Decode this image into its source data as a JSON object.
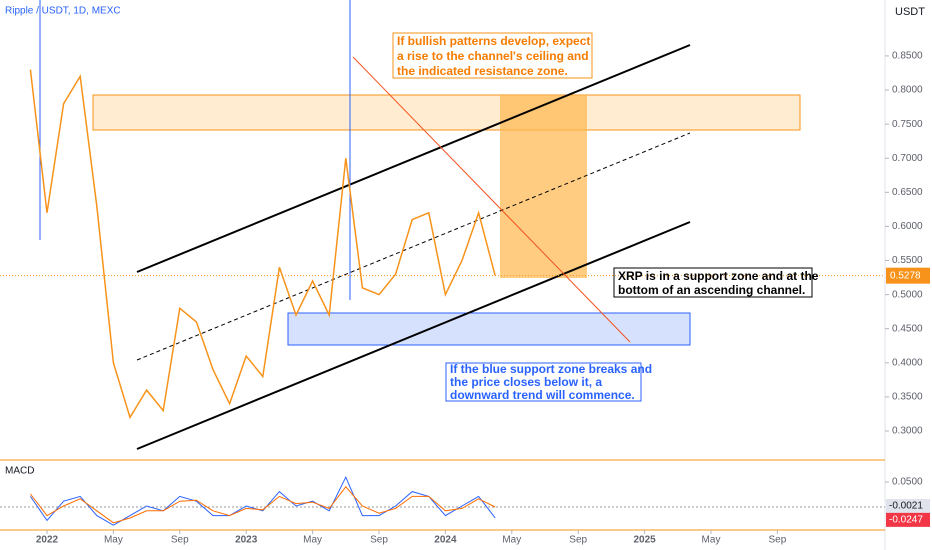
{
  "chart_data": [
    {
      "type": "line",
      "title": "Ripple / USDT, 1D, MEXC",
      "unit": "USDT",
      "color": "#f7931a",
      "x": [
        "2021-12",
        "2022-01",
        "2022-02",
        "2022-03",
        "2022-04",
        "2022-05",
        "2022-06",
        "2022-07",
        "2022-08",
        "2022-09",
        "2022-10",
        "2022-11",
        "2022-12",
        "2023-01",
        "2023-02",
        "2023-03",
        "2023-04",
        "2023-05",
        "2023-06",
        "2023-07",
        "2023-08",
        "2023-09",
        "2023-10",
        "2023-11",
        "2023-12",
        "2024-01",
        "2024-02",
        "2024-03",
        "2024-04"
      ],
      "values": [
        0.83,
        0.62,
        0.78,
        0.82,
        0.63,
        0.4,
        0.32,
        0.36,
        0.33,
        0.48,
        0.46,
        0.39,
        0.34,
        0.41,
        0.38,
        0.54,
        0.47,
        0.52,
        0.47,
        0.7,
        0.51,
        0.5,
        0.53,
        0.61,
        0.62,
        0.5,
        0.55,
        0.62,
        0.5278
      ],
      "last_price": 0.5278,
      "ylim": [
        0.2575,
        0.932
      ],
      "yticks": [
        {
          "value": 0.3,
          "label": "0.3000"
        },
        {
          "value": 0.35,
          "label": "0.3500"
        },
        {
          "value": 0.4,
          "label": "0.4000"
        },
        {
          "value": 0.45,
          "label": "0.4500"
        },
        {
          "value": 0.5,
          "label": "0.5000"
        },
        {
          "value": 0.55,
          "label": "0.5500"
        },
        {
          "value": 0.6,
          "label": "0.6000"
        },
        {
          "value": 0.65,
          "label": "0.6500"
        },
        {
          "value": 0.7,
          "label": "0.7000"
        },
        {
          "value": 0.75,
          "label": "0.7500"
        },
        {
          "value": 0.8,
          "label": "0.8000"
        },
        {
          "value": 0.85,
          "label": "0.8500"
        }
      ],
      "xticks": [
        {
          "value": "2022-01",
          "label": "2022"
        },
        {
          "value": "2022-05",
          "label": "May"
        },
        {
          "value": "2022-09",
          "label": "Sep"
        },
        {
          "value": "2023-01",
          "label": "2023"
        },
        {
          "value": "2023-05",
          "label": "May"
        },
        {
          "value": "2023-09",
          "label": "Sep"
        },
        {
          "value": "2024-01",
          "label": "2024"
        },
        {
          "value": "2024-05",
          "label": "May"
        },
        {
          "value": "2024-09",
          "label": "Sep"
        },
        {
          "value": "2025-01",
          "label": "2025"
        },
        {
          "value": "2025-05",
          "label": "May"
        },
        {
          "value": "2025-09",
          "label": "Sep"
        }
      ],
      "annotations": [
        {
          "lines": [
            "If bullish patterns develop, expect",
            "a rise to the channel's ceiling and",
            "the indicated resistance zone."
          ]
        },
        {
          "lines": [
            "XRP is in a support zone and at the",
            "bottom of an ascending channel."
          ]
        },
        {
          "lines": [
            "If the blue support zone breaks and",
            "the price closes below it, a",
            "downward trend will commence."
          ]
        }
      ]
    },
    {
      "type": "line",
      "title": "MACD",
      "x": [
        "2021-12",
        "2022-01",
        "2022-02",
        "2022-03",
        "2022-04",
        "2022-05",
        "2022-06",
        "2022-07",
        "2022-08",
        "2022-09",
        "2022-10",
        "2022-11",
        "2022-12",
        "2023-01",
        "2023-02",
        "2023-03",
        "2023-04",
        "2023-05",
        "2023-06",
        "2023-07",
        "2023-08",
        "2023-09",
        "2023-10",
        "2023-11",
        "2023-12",
        "2024-01",
        "2024-02",
        "2024-03",
        "2024-04"
      ],
      "series": [
        {
          "color": "#2962ff",
          "values": [
            0.02,
            -0.03,
            0.01,
            0.02,
            -0.02,
            -0.04,
            -0.02,
            0.0,
            -0.01,
            0.02,
            0.01,
            -0.02,
            -0.02,
            0.0,
            -0.01,
            0.03,
            0.0,
            0.01,
            -0.01,
            0.06,
            -0.02,
            -0.02,
            0.0,
            0.03,
            0.02,
            -0.02,
            0.0,
            0.02,
            -0.0247
          ]
        },
        {
          "color": "#ff6d00",
          "values": [
            0.025,
            -0.02,
            0.0,
            0.015,
            -0.01,
            -0.035,
            -0.025,
            -0.01,
            -0.01,
            0.01,
            0.012,
            -0.01,
            -0.02,
            -0.005,
            -0.008,
            0.02,
            0.005,
            0.008,
            -0.005,
            0.04,
            0.0,
            -0.015,
            -0.005,
            0.02,
            0.02,
            -0.01,
            -0.005,
            0.015,
            -0.0021
          ]
        }
      ],
      "last_values": [
        -0.0021,
        -0.0247
      ],
      "ylim": [
        -0.05,
        0.0917
      ],
      "yticks": [
        {
          "value": 0.05,
          "label": "0.0500"
        }
      ]
    }
  ]
}
